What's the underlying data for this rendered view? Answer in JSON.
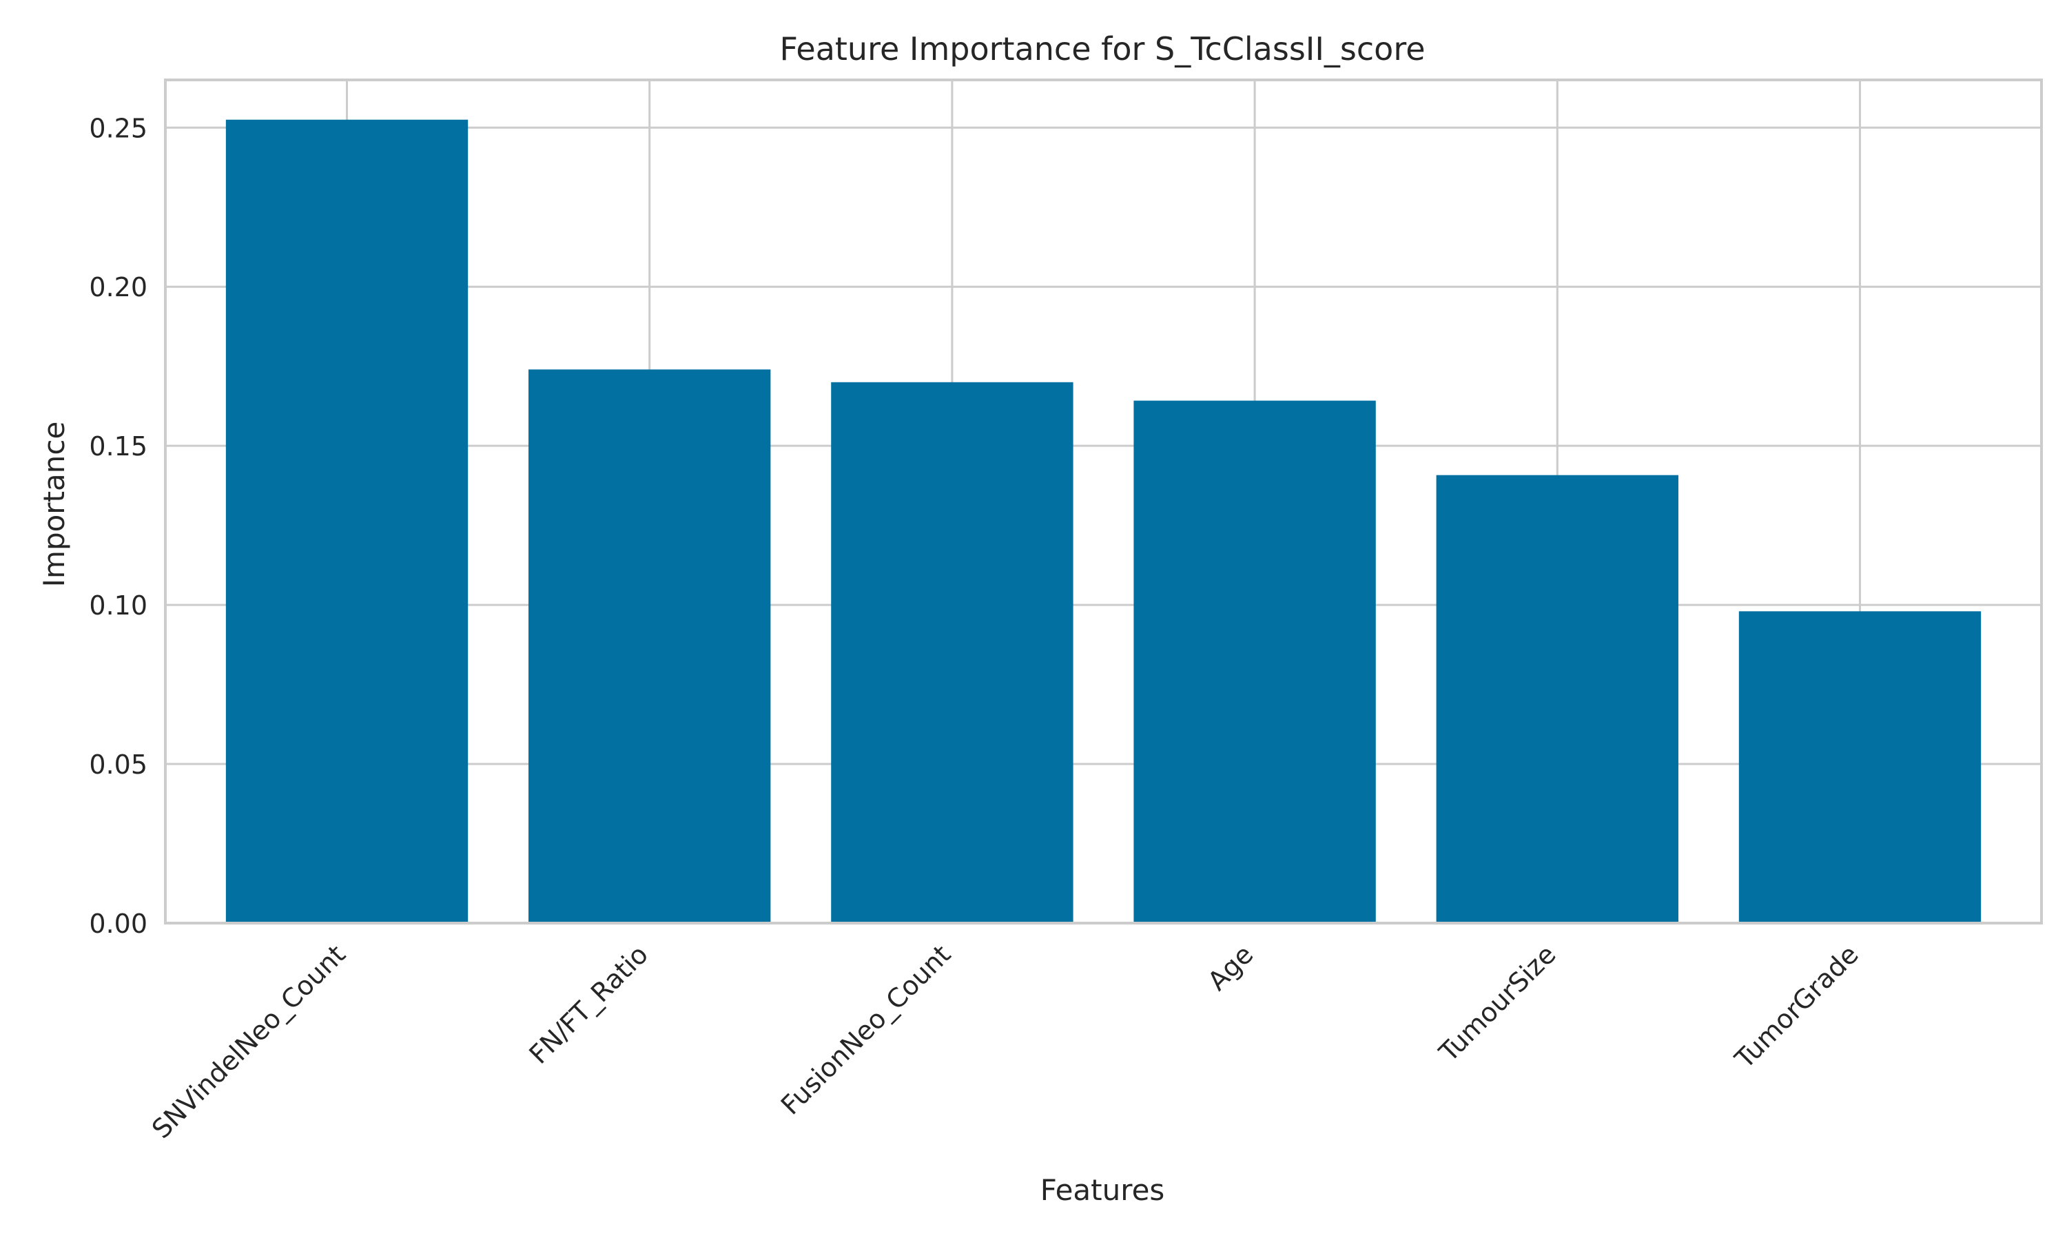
{
  "chart_data": {
    "type": "bar",
    "title": "Feature Importance for S_TcClassII_score",
    "xlabel": "Features",
    "ylabel": "Importance",
    "categories": [
      "SNVindelNeo_Count",
      "FN/FT_Ratio",
      "FusionNeo_Count",
      "Age",
      "TumourSize",
      "TumorGrade"
    ],
    "values": [
      0.2525,
      0.174,
      0.17,
      0.1642,
      0.1408,
      0.098
    ],
    "ylim": [
      0,
      0.265
    ],
    "yticks": [
      0,
      0.05,
      0.1,
      0.15,
      0.2,
      0.25
    ],
    "ytick_labels": [
      "0.00",
      "0.05",
      "0.10",
      "0.15",
      "0.20",
      "0.25"
    ],
    "grid": true,
    "legend": "none",
    "colors": {
      "bar": "#0271a2",
      "grid": "#cccccc",
      "text": "#262626",
      "background": "#ffffff"
    }
  }
}
